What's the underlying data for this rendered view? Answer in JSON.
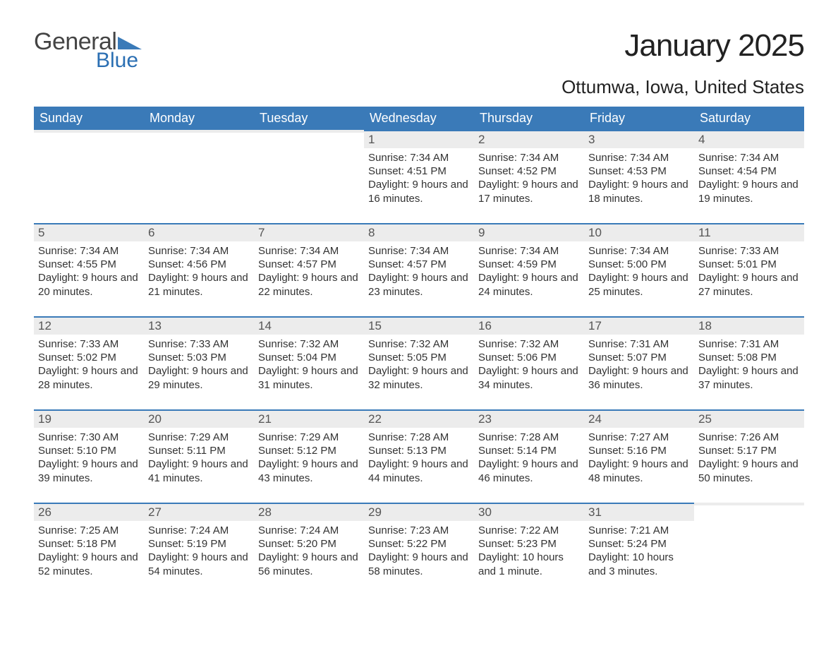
{
  "logo": {
    "text_general": "General",
    "text_blue": "Blue",
    "tri_color": "#3a7ab8"
  },
  "title": "January 2025",
  "location": "Ottumwa, Iowa, United States",
  "colors": {
    "header_bg": "#3a7ab8",
    "header_text": "#ffffff",
    "daynum_bg": "#ececec",
    "daynum_border": "#3a7ab8",
    "body_bg": "#ffffff",
    "text": "#333333"
  },
  "fonts": {
    "title_size": 44,
    "location_size": 26,
    "dayhead_size": 18,
    "cell_size": 15
  },
  "day_headers": [
    "Sunday",
    "Monday",
    "Tuesday",
    "Wednesday",
    "Thursday",
    "Friday",
    "Saturday"
  ],
  "weeks": [
    [
      {
        "num": "",
        "sunrise": "",
        "sunset": "",
        "daylight": ""
      },
      {
        "num": "",
        "sunrise": "",
        "sunset": "",
        "daylight": ""
      },
      {
        "num": "",
        "sunrise": "",
        "sunset": "",
        "daylight": ""
      },
      {
        "num": "1",
        "sunrise": "Sunrise: 7:34 AM",
        "sunset": "Sunset: 4:51 PM",
        "daylight": "Daylight: 9 hours and 16 minutes."
      },
      {
        "num": "2",
        "sunrise": "Sunrise: 7:34 AM",
        "sunset": "Sunset: 4:52 PM",
        "daylight": "Daylight: 9 hours and 17 minutes."
      },
      {
        "num": "3",
        "sunrise": "Sunrise: 7:34 AM",
        "sunset": "Sunset: 4:53 PM",
        "daylight": "Daylight: 9 hours and 18 minutes."
      },
      {
        "num": "4",
        "sunrise": "Sunrise: 7:34 AM",
        "sunset": "Sunset: 4:54 PM",
        "daylight": "Daylight: 9 hours and 19 minutes."
      }
    ],
    [
      {
        "num": "5",
        "sunrise": "Sunrise: 7:34 AM",
        "sunset": "Sunset: 4:55 PM",
        "daylight": "Daylight: 9 hours and 20 minutes."
      },
      {
        "num": "6",
        "sunrise": "Sunrise: 7:34 AM",
        "sunset": "Sunset: 4:56 PM",
        "daylight": "Daylight: 9 hours and 21 minutes."
      },
      {
        "num": "7",
        "sunrise": "Sunrise: 7:34 AM",
        "sunset": "Sunset: 4:57 PM",
        "daylight": "Daylight: 9 hours and 22 minutes."
      },
      {
        "num": "8",
        "sunrise": "Sunrise: 7:34 AM",
        "sunset": "Sunset: 4:57 PM",
        "daylight": "Daylight: 9 hours and 23 minutes."
      },
      {
        "num": "9",
        "sunrise": "Sunrise: 7:34 AM",
        "sunset": "Sunset: 4:59 PM",
        "daylight": "Daylight: 9 hours and 24 minutes."
      },
      {
        "num": "10",
        "sunrise": "Sunrise: 7:34 AM",
        "sunset": "Sunset: 5:00 PM",
        "daylight": "Daylight: 9 hours and 25 minutes."
      },
      {
        "num": "11",
        "sunrise": "Sunrise: 7:33 AM",
        "sunset": "Sunset: 5:01 PM",
        "daylight": "Daylight: 9 hours and 27 minutes."
      }
    ],
    [
      {
        "num": "12",
        "sunrise": "Sunrise: 7:33 AM",
        "sunset": "Sunset: 5:02 PM",
        "daylight": "Daylight: 9 hours and 28 minutes."
      },
      {
        "num": "13",
        "sunrise": "Sunrise: 7:33 AM",
        "sunset": "Sunset: 5:03 PM",
        "daylight": "Daylight: 9 hours and 29 minutes."
      },
      {
        "num": "14",
        "sunrise": "Sunrise: 7:32 AM",
        "sunset": "Sunset: 5:04 PM",
        "daylight": "Daylight: 9 hours and 31 minutes."
      },
      {
        "num": "15",
        "sunrise": "Sunrise: 7:32 AM",
        "sunset": "Sunset: 5:05 PM",
        "daylight": "Daylight: 9 hours and 32 minutes."
      },
      {
        "num": "16",
        "sunrise": "Sunrise: 7:32 AM",
        "sunset": "Sunset: 5:06 PM",
        "daylight": "Daylight: 9 hours and 34 minutes."
      },
      {
        "num": "17",
        "sunrise": "Sunrise: 7:31 AM",
        "sunset": "Sunset: 5:07 PM",
        "daylight": "Daylight: 9 hours and 36 minutes."
      },
      {
        "num": "18",
        "sunrise": "Sunrise: 7:31 AM",
        "sunset": "Sunset: 5:08 PM",
        "daylight": "Daylight: 9 hours and 37 minutes."
      }
    ],
    [
      {
        "num": "19",
        "sunrise": "Sunrise: 7:30 AM",
        "sunset": "Sunset: 5:10 PM",
        "daylight": "Daylight: 9 hours and 39 minutes."
      },
      {
        "num": "20",
        "sunrise": "Sunrise: 7:29 AM",
        "sunset": "Sunset: 5:11 PM",
        "daylight": "Daylight: 9 hours and 41 minutes."
      },
      {
        "num": "21",
        "sunrise": "Sunrise: 7:29 AM",
        "sunset": "Sunset: 5:12 PM",
        "daylight": "Daylight: 9 hours and 43 minutes."
      },
      {
        "num": "22",
        "sunrise": "Sunrise: 7:28 AM",
        "sunset": "Sunset: 5:13 PM",
        "daylight": "Daylight: 9 hours and 44 minutes."
      },
      {
        "num": "23",
        "sunrise": "Sunrise: 7:28 AM",
        "sunset": "Sunset: 5:14 PM",
        "daylight": "Daylight: 9 hours and 46 minutes."
      },
      {
        "num": "24",
        "sunrise": "Sunrise: 7:27 AM",
        "sunset": "Sunset: 5:16 PM",
        "daylight": "Daylight: 9 hours and 48 minutes."
      },
      {
        "num": "25",
        "sunrise": "Sunrise: 7:26 AM",
        "sunset": "Sunset: 5:17 PM",
        "daylight": "Daylight: 9 hours and 50 minutes."
      }
    ],
    [
      {
        "num": "26",
        "sunrise": "Sunrise: 7:25 AM",
        "sunset": "Sunset: 5:18 PM",
        "daylight": "Daylight: 9 hours and 52 minutes."
      },
      {
        "num": "27",
        "sunrise": "Sunrise: 7:24 AM",
        "sunset": "Sunset: 5:19 PM",
        "daylight": "Daylight: 9 hours and 54 minutes."
      },
      {
        "num": "28",
        "sunrise": "Sunrise: 7:24 AM",
        "sunset": "Sunset: 5:20 PM",
        "daylight": "Daylight: 9 hours and 56 minutes."
      },
      {
        "num": "29",
        "sunrise": "Sunrise: 7:23 AM",
        "sunset": "Sunset: 5:22 PM",
        "daylight": "Daylight: 9 hours and 58 minutes."
      },
      {
        "num": "30",
        "sunrise": "Sunrise: 7:22 AM",
        "sunset": "Sunset: 5:23 PM",
        "daylight": "Daylight: 10 hours and 1 minute."
      },
      {
        "num": "31",
        "sunrise": "Sunrise: 7:21 AM",
        "sunset": "Sunset: 5:24 PM",
        "daylight": "Daylight: 10 hours and 3 minutes."
      },
      {
        "num": "",
        "sunrise": "",
        "sunset": "",
        "daylight": ""
      }
    ]
  ]
}
